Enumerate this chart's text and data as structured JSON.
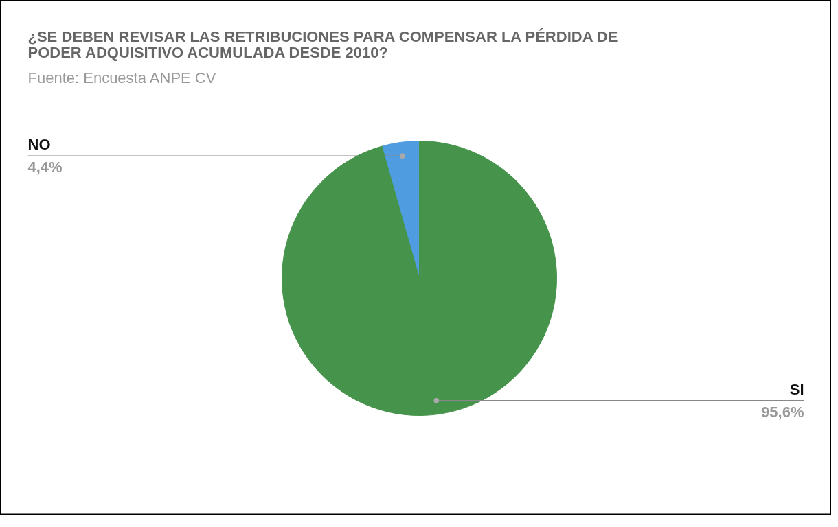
{
  "chart_data": {
    "type": "pie",
    "title": "¿SE DEBEN REVISAR LAS RETRIBUCIONES PARA COMPENSAR LA PÉRDIDA DE PODER ADQUISITIVO ACUMULADA DESDE 2010?",
    "subtitle": "Fuente: Encuesta ANPE CV",
    "categories": [
      "NO",
      "SI"
    ],
    "values": [
      4.4,
      95.6
    ],
    "colors": [
      "#4f9de0",
      "#46934c"
    ],
    "value_labels": [
      "4,4%",
      "95,6%"
    ]
  }
}
